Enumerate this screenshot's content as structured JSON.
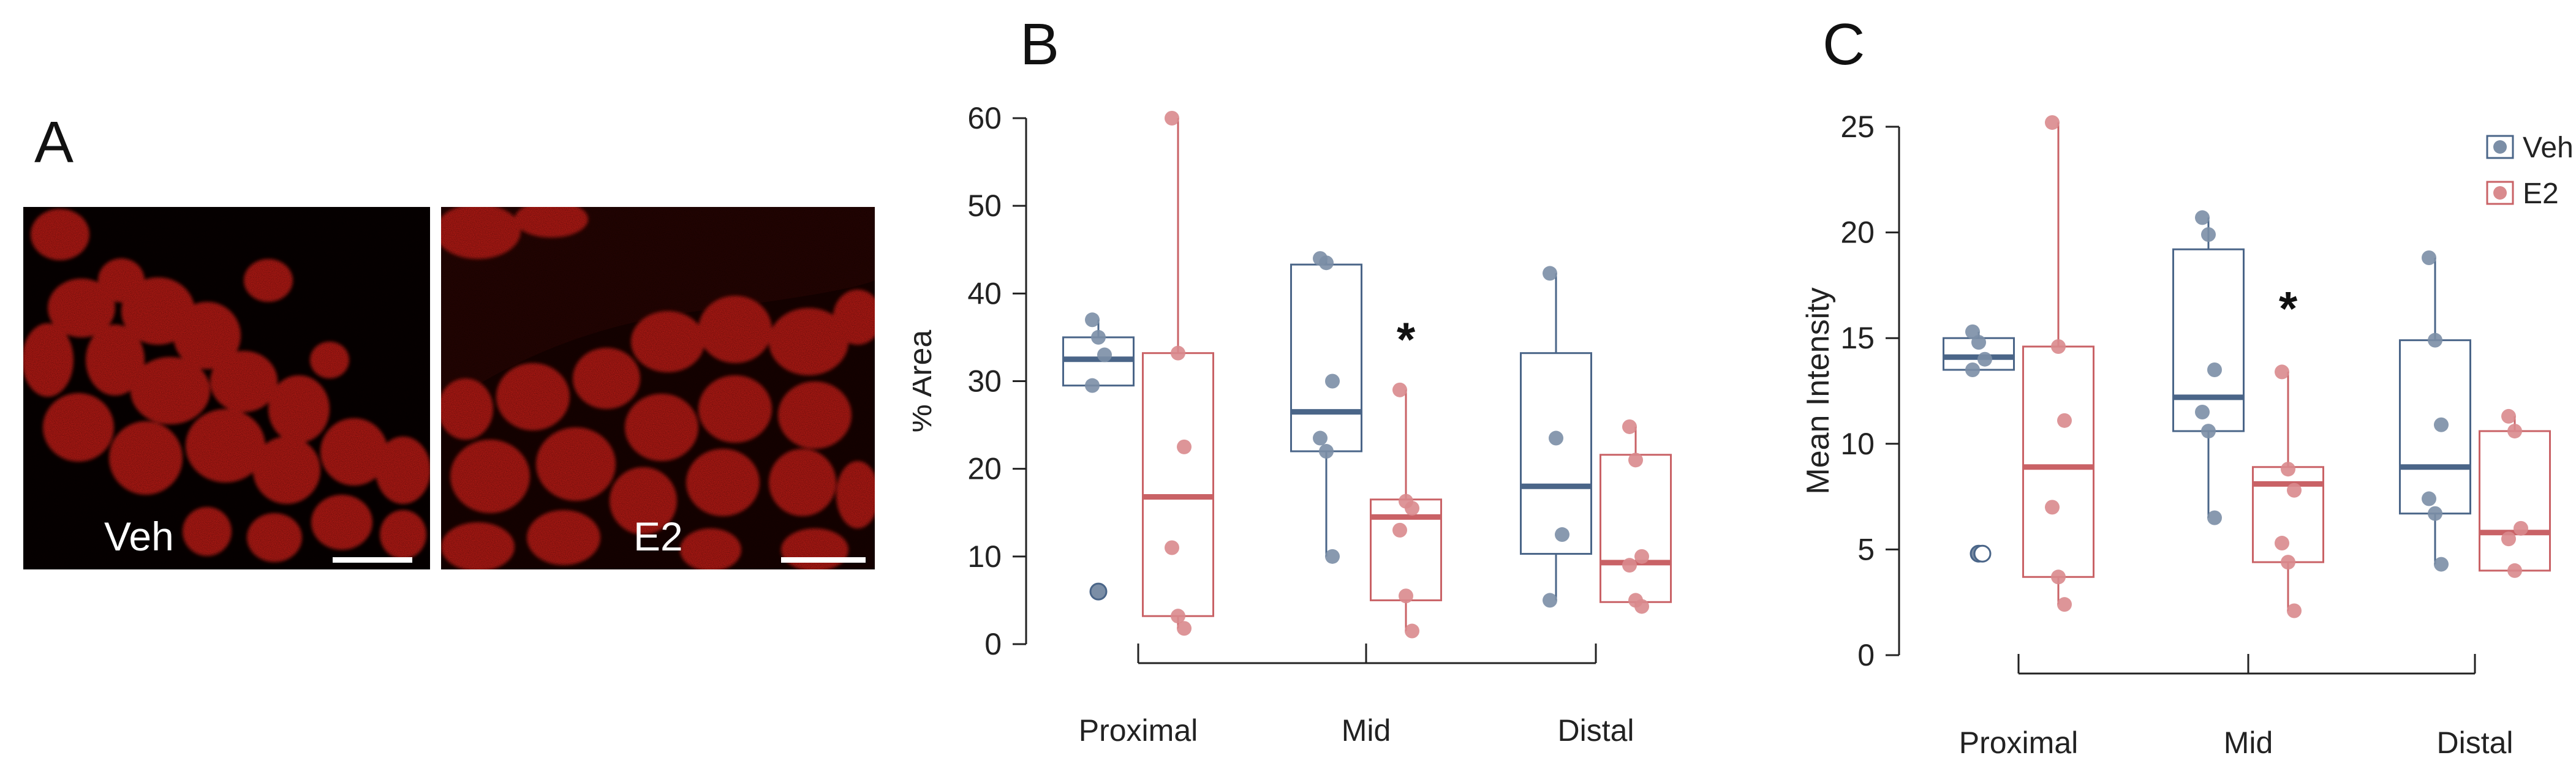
{
  "panels": {
    "a": {
      "letter": "A",
      "images": [
        {
          "label": "Veh"
        },
        {
          "label": "E2"
        }
      ]
    },
    "b": {
      "letter": "B"
    },
    "c": {
      "letter": "C"
    }
  },
  "colors": {
    "veh": "#4a6588",
    "e2": "#c96266",
    "veh_point": "#7b8ea6",
    "e2_point": "#d98a8d",
    "micrograph_red": "#e0261b"
  },
  "chart_data": [
    {
      "type": "box",
      "panel": "B",
      "ylabel": "% Area",
      "xlabel": "",
      "title": "",
      "ylim": [
        0,
        60
      ],
      "yticks": [
        0,
        10,
        20,
        30,
        40,
        50,
        60
      ],
      "categories": [
        "Proximal",
        "Mid",
        "Distal"
      ],
      "series": [
        {
          "name": "Veh",
          "boxes": [
            {
              "whisker_low": 29.5,
              "q1": 29.5,
              "median": 32.5,
              "q3": 35.0,
              "whisker_high": 37.0,
              "points": [
                37.0,
                35.0,
                33.0,
                29.5
              ],
              "outliers": [
                6.0
              ]
            },
            {
              "whisker_low": 10.0,
              "q1": 22.0,
              "median": 26.5,
              "q3": 43.3,
              "whisker_high": 44.0,
              "points": [
                44.0,
                43.5,
                30.0,
                23.5,
                22.0,
                10.0
              ],
              "outliers": []
            },
            {
              "whisker_low": 5.0,
              "q1": 10.3,
              "median": 18.0,
              "q3": 33.2,
              "whisker_high": 42.3,
              "points": [
                42.3,
                23.5,
                12.5,
                5.0
              ],
              "outliers": []
            }
          ]
        },
        {
          "name": "E2",
          "boxes": [
            {
              "whisker_low": 1.8,
              "q1": 3.2,
              "median": 16.8,
              "q3": 33.2,
              "whisker_high": 60.0,
              "points": [
                60.0,
                33.2,
                22.5,
                11.0,
                3.2,
                1.8
              ],
              "outliers": []
            },
            {
              "whisker_low": 1.5,
              "q1": 5.0,
              "median": 14.5,
              "q3": 16.5,
              "whisker_high": 29.0,
              "points": [
                29.0,
                16.3,
                15.5,
                13.0,
                5.5,
                1.5
              ],
              "outliers": []
            },
            {
              "whisker_low": 4.3,
              "q1": 4.8,
              "median": 9.3,
              "q3": 21.6,
              "whisker_high": 24.8,
              "points": [
                24.8,
                21.0,
                10.0,
                9.0,
                5.0,
                4.3
              ],
              "outliers": []
            }
          ]
        }
      ],
      "annotations": [
        {
          "text": "*",
          "category": "Mid",
          "y": 35.0
        }
      ]
    },
    {
      "type": "box",
      "panel": "C",
      "ylabel": "Mean Intensity",
      "xlabel": "",
      "title": "",
      "ylim": [
        0,
        25
      ],
      "yticks": [
        0,
        5,
        10,
        15,
        20,
        25
      ],
      "categories": [
        "Proximal",
        "Mid",
        "Distal"
      ],
      "legend": {
        "position": "top-right",
        "entries": [
          "Veh",
          "E2"
        ]
      },
      "series": [
        {
          "name": "Veh",
          "boxes": [
            {
              "whisker_low": 13.5,
              "q1": 13.5,
              "median": 14.1,
              "q3": 15.0,
              "whisker_high": 15.3,
              "points": [
                15.3,
                14.8,
                14.0,
                13.5
              ],
              "outliers": [
                4.8,
                4.8
              ]
            },
            {
              "whisker_low": 6.5,
              "q1": 10.6,
              "median": 12.2,
              "q3": 19.2,
              "whisker_high": 20.7,
              "points": [
                20.7,
                19.9,
                13.5,
                11.5,
                10.6,
                6.5
              ],
              "outliers": []
            },
            {
              "whisker_low": 4.3,
              "q1": 6.7,
              "median": 8.9,
              "q3": 14.9,
              "whisker_high": 18.8,
              "points": [
                18.8,
                14.9,
                10.9,
                7.4,
                6.7,
                4.3
              ],
              "outliers": []
            }
          ]
        },
        {
          "name": "E2",
          "boxes": [
            {
              "whisker_low": 2.4,
              "q1": 3.7,
              "median": 8.9,
              "q3": 14.6,
              "whisker_high": 25.2,
              "points": [
                25.2,
                14.6,
                11.1,
                7.0,
                3.7,
                2.4
              ],
              "outliers": []
            },
            {
              "whisker_low": 2.1,
              "q1": 4.4,
              "median": 8.1,
              "q3": 8.9,
              "whisker_high": 13.4,
              "points": [
                13.4,
                8.8,
                7.8,
                5.3,
                4.4,
                2.1
              ],
              "outliers": []
            },
            {
              "whisker_low": 4.0,
              "q1": 4.0,
              "median": 5.8,
              "q3": 10.6,
              "whisker_high": 11.3,
              "points": [
                11.3,
                10.6,
                6.0,
                5.5,
                4.0
              ],
              "outliers": []
            }
          ]
        }
      ],
      "annotations": [
        {
          "text": "*",
          "category": "Mid",
          "y": 16.5
        }
      ]
    }
  ]
}
